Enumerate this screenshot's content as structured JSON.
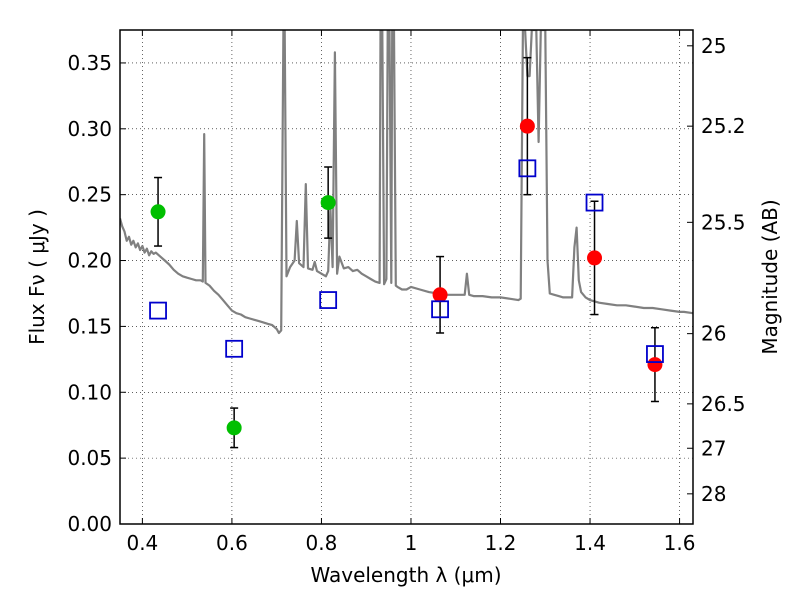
{
  "chart_data": {
    "type": "scatter",
    "xlabel": "Wavelength  λ (μm)",
    "ylabel": "Flux  Fν  ( μJy )",
    "ylabel_right": "Magnitude (AB)",
    "xlim": [
      0.35,
      1.63
    ],
    "ylim": [
      0.0,
      0.375
    ],
    "grid": true,
    "x_ticks": [
      0.4,
      0.6,
      0.8,
      1.0,
      1.2,
      1.4,
      1.6
    ],
    "x_tick_labels": [
      "0.4",
      "0.6",
      "0.8",
      "1",
      "1.2",
      "1.4",
      "1.6"
    ],
    "y_ticks": [
      0.0,
      0.05,
      0.1,
      0.15,
      0.2,
      0.25,
      0.3,
      0.35
    ],
    "y_tick_labels": [
      "0.00",
      "0.05",
      "0.10",
      "0.15",
      "0.20",
      "0.25",
      "0.30",
      "0.35"
    ],
    "right_ticks": [
      {
        "label": "25",
        "flux": 0.363
      },
      {
        "label": "25.2",
        "flux": 0.302
      },
      {
        "label": "25.5",
        "flux": 0.229
      },
      {
        "label": "26",
        "flux": 0.1445
      },
      {
        "label": "26.5",
        "flux": 0.0912
      },
      {
        "label": "27",
        "flux": 0.0575
      },
      {
        "label": "28",
        "flux": 0.0229
      }
    ],
    "series": [
      {
        "kind": "line",
        "color": "#808080",
        "points": [
          [
            0.35,
            0.232
          ],
          [
            0.355,
            0.226
          ],
          [
            0.36,
            0.222
          ],
          [
            0.365,
            0.215
          ],
          [
            0.37,
            0.218
          ],
          [
            0.375,
            0.212
          ],
          [
            0.38,
            0.215
          ],
          [
            0.385,
            0.21
          ],
          [
            0.39,
            0.213
          ],
          [
            0.395,
            0.208
          ],
          [
            0.4,
            0.211
          ],
          [
            0.405,
            0.206
          ],
          [
            0.41,
            0.209
          ],
          [
            0.415,
            0.204
          ],
          [
            0.42,
            0.207
          ],
          [
            0.425,
            0.205
          ],
          [
            0.43,
            0.206
          ],
          [
            0.44,
            0.203
          ],
          [
            0.45,
            0.2
          ],
          [
            0.46,
            0.197
          ],
          [
            0.47,
            0.193
          ],
          [
            0.48,
            0.19
          ],
          [
            0.49,
            0.188
          ],
          [
            0.5,
            0.187
          ],
          [
            0.51,
            0.186
          ],
          [
            0.52,
            0.185
          ],
          [
            0.53,
            0.185
          ],
          [
            0.535,
            0.184
          ],
          [
            0.538,
            0.296
          ],
          [
            0.541,
            0.183
          ],
          [
            0.55,
            0.181
          ],
          [
            0.56,
            0.177
          ],
          [
            0.57,
            0.174
          ],
          [
            0.58,
            0.17
          ],
          [
            0.59,
            0.166
          ],
          [
            0.6,
            0.162
          ],
          [
            0.61,
            0.16
          ],
          [
            0.62,
            0.159
          ],
          [
            0.63,
            0.157
          ],
          [
            0.64,
            0.156
          ],
          [
            0.65,
            0.155
          ],
          [
            0.66,
            0.154
          ],
          [
            0.67,
            0.153
          ],
          [
            0.68,
            0.152
          ],
          [
            0.69,
            0.151
          ],
          [
            0.7,
            0.148
          ],
          [
            0.705,
            0.145
          ],
          [
            0.71,
            0.147
          ],
          [
            0.715,
            0.375
          ],
          [
            0.718,
            0.375
          ],
          [
            0.722,
            0.188
          ],
          [
            0.73,
            0.195
          ],
          [
            0.74,
            0.2
          ],
          [
            0.745,
            0.23
          ],
          [
            0.75,
            0.198
          ],
          [
            0.76,
            0.195
          ],
          [
            0.765,
            0.258
          ],
          [
            0.77,
            0.194
          ],
          [
            0.78,
            0.193
          ],
          [
            0.785,
            0.199
          ],
          [
            0.79,
            0.192
          ],
          [
            0.8,
            0.19
          ],
          [
            0.81,
            0.188
          ],
          [
            0.815,
            0.192
          ],
          [
            0.82,
            0.24
          ],
          [
            0.825,
            0.195
          ],
          [
            0.83,
            0.358
          ],
          [
            0.835,
            0.19
          ],
          [
            0.84,
            0.203
          ],
          [
            0.85,
            0.194
          ],
          [
            0.86,
            0.195
          ],
          [
            0.87,
            0.192
          ],
          [
            0.88,
            0.193
          ],
          [
            0.89,
            0.19
          ],
          [
            0.9,
            0.188
          ],
          [
            0.91,
            0.186
          ],
          [
            0.92,
            0.184
          ],
          [
            0.93,
            0.183
          ],
          [
            0.932,
            0.375
          ],
          [
            0.936,
            0.375
          ],
          [
            0.94,
            0.182
          ],
          [
            0.945,
            0.186
          ],
          [
            0.948,
            0.375
          ],
          [
            0.952,
            0.375
          ],
          [
            0.956,
            0.183
          ],
          [
            0.958,
            0.375
          ],
          [
            0.962,
            0.375
          ],
          [
            0.966,
            0.181
          ],
          [
            0.97,
            0.18
          ],
          [
            0.98,
            0.178
          ],
          [
            0.99,
            0.178
          ],
          [
            1.0,
            0.18
          ],
          [
            1.02,
            0.178
          ],
          [
            1.04,
            0.176
          ],
          [
            1.06,
            0.175
          ],
          [
            1.08,
            0.174
          ],
          [
            1.1,
            0.174
          ],
          [
            1.12,
            0.174
          ],
          [
            1.125,
            0.19
          ],
          [
            1.13,
            0.174
          ],
          [
            1.14,
            0.173
          ],
          [
            1.16,
            0.173
          ],
          [
            1.18,
            0.172
          ],
          [
            1.2,
            0.172
          ],
          [
            1.22,
            0.171
          ],
          [
            1.24,
            0.17
          ],
          [
            1.245,
            0.171
          ],
          [
            1.25,
            0.375
          ],
          [
            1.255,
            0.375
          ],
          [
            1.26,
            0.34
          ],
          [
            1.265,
            0.34
          ],
          [
            1.27,
            0.375
          ],
          [
            1.28,
            0.375
          ],
          [
            1.285,
            0.29
          ],
          [
            1.29,
            0.375
          ],
          [
            1.3,
            0.375
          ],
          [
            1.305,
            0.2
          ],
          [
            1.31,
            0.175
          ],
          [
            1.32,
            0.174
          ],
          [
            1.33,
            0.173
          ],
          [
            1.34,
            0.172
          ],
          [
            1.35,
            0.172
          ],
          [
            1.36,
            0.172
          ],
          [
            1.365,
            0.21
          ],
          [
            1.37,
            0.225
          ],
          [
            1.375,
            0.185
          ],
          [
            1.38,
            0.176
          ],
          [
            1.39,
            0.172
          ],
          [
            1.4,
            0.17
          ],
          [
            1.42,
            0.168
          ],
          [
            1.44,
            0.167
          ],
          [
            1.46,
            0.166
          ],
          [
            1.48,
            0.166
          ],
          [
            1.5,
            0.165
          ],
          [
            1.52,
            0.164
          ],
          [
            1.54,
            0.164
          ],
          [
            1.56,
            0.163
          ],
          [
            1.58,
            0.162
          ],
          [
            1.6,
            0.161
          ],
          [
            1.61,
            0.161
          ],
          [
            1.63,
            0.16
          ]
        ]
      },
      {
        "kind": "points",
        "marker": "circle",
        "color": "#00bf00",
        "points": [
          {
            "x": 0.435,
            "y": 0.237,
            "err": 0.026
          },
          {
            "x": 0.605,
            "y": 0.073,
            "err": 0.015
          },
          {
            "x": 0.815,
            "y": 0.244,
            "err": 0.027
          }
        ]
      },
      {
        "kind": "points",
        "marker": "circle",
        "color": "#ff0000",
        "points": [
          {
            "x": 1.065,
            "y": 0.174,
            "err": 0.029
          },
          {
            "x": 1.26,
            "y": 0.302,
            "err": 0.052
          },
          {
            "x": 1.41,
            "y": 0.202,
            "err": 0.043
          },
          {
            "x": 1.545,
            "y": 0.121,
            "err": 0.028
          }
        ]
      },
      {
        "kind": "points",
        "marker": "open-square",
        "color": "#0000cc",
        "points": [
          {
            "x": 0.435,
            "y": 0.162
          },
          {
            "x": 0.605,
            "y": 0.133
          },
          {
            "x": 0.815,
            "y": 0.17
          },
          {
            "x": 1.065,
            "y": 0.163
          },
          {
            "x": 1.26,
            "y": 0.27
          },
          {
            "x": 1.41,
            "y": 0.244
          },
          {
            "x": 1.545,
            "y": 0.129
          }
        ]
      }
    ]
  }
}
